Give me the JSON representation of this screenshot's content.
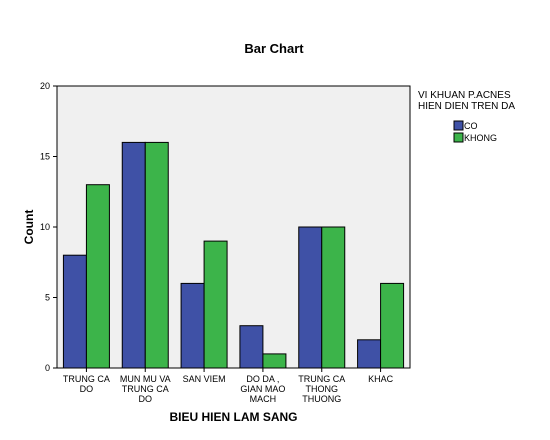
{
  "chart_data": {
    "type": "bar",
    "title": "Bar Chart",
    "xlabel": "BIEU HIEN LAM SANG",
    "ylabel": "Count",
    "ylim": [
      0,
      20
    ],
    "yticks": [
      0,
      5,
      10,
      15,
      20
    ],
    "categories": [
      [
        "TRUNG CA",
        "DO"
      ],
      [
        "MUN MU VA",
        "TRUNG CA",
        "DO"
      ],
      [
        "SAN VIEM"
      ],
      [
        "DO DA ,",
        "GIAN MAO",
        "MACH"
      ],
      [
        "TRUNG CA",
        "THONG",
        "THUONG"
      ],
      [
        "KHAC"
      ]
    ],
    "legend": {
      "title": [
        "VI KHUAN P.ACNES",
        "HIEN DIEN TREN DA"
      ],
      "placement": "right"
    },
    "series": [
      {
        "name": "CO",
        "color": "#3f51a6",
        "values": [
          8,
          16,
          6,
          3,
          10,
          2
        ]
      },
      {
        "name": "KHONG",
        "color": "#3cb44a",
        "values": [
          13,
          16,
          9,
          1,
          10,
          6
        ]
      }
    ],
    "plot_background": "#f0f0f0",
    "grid": false
  }
}
